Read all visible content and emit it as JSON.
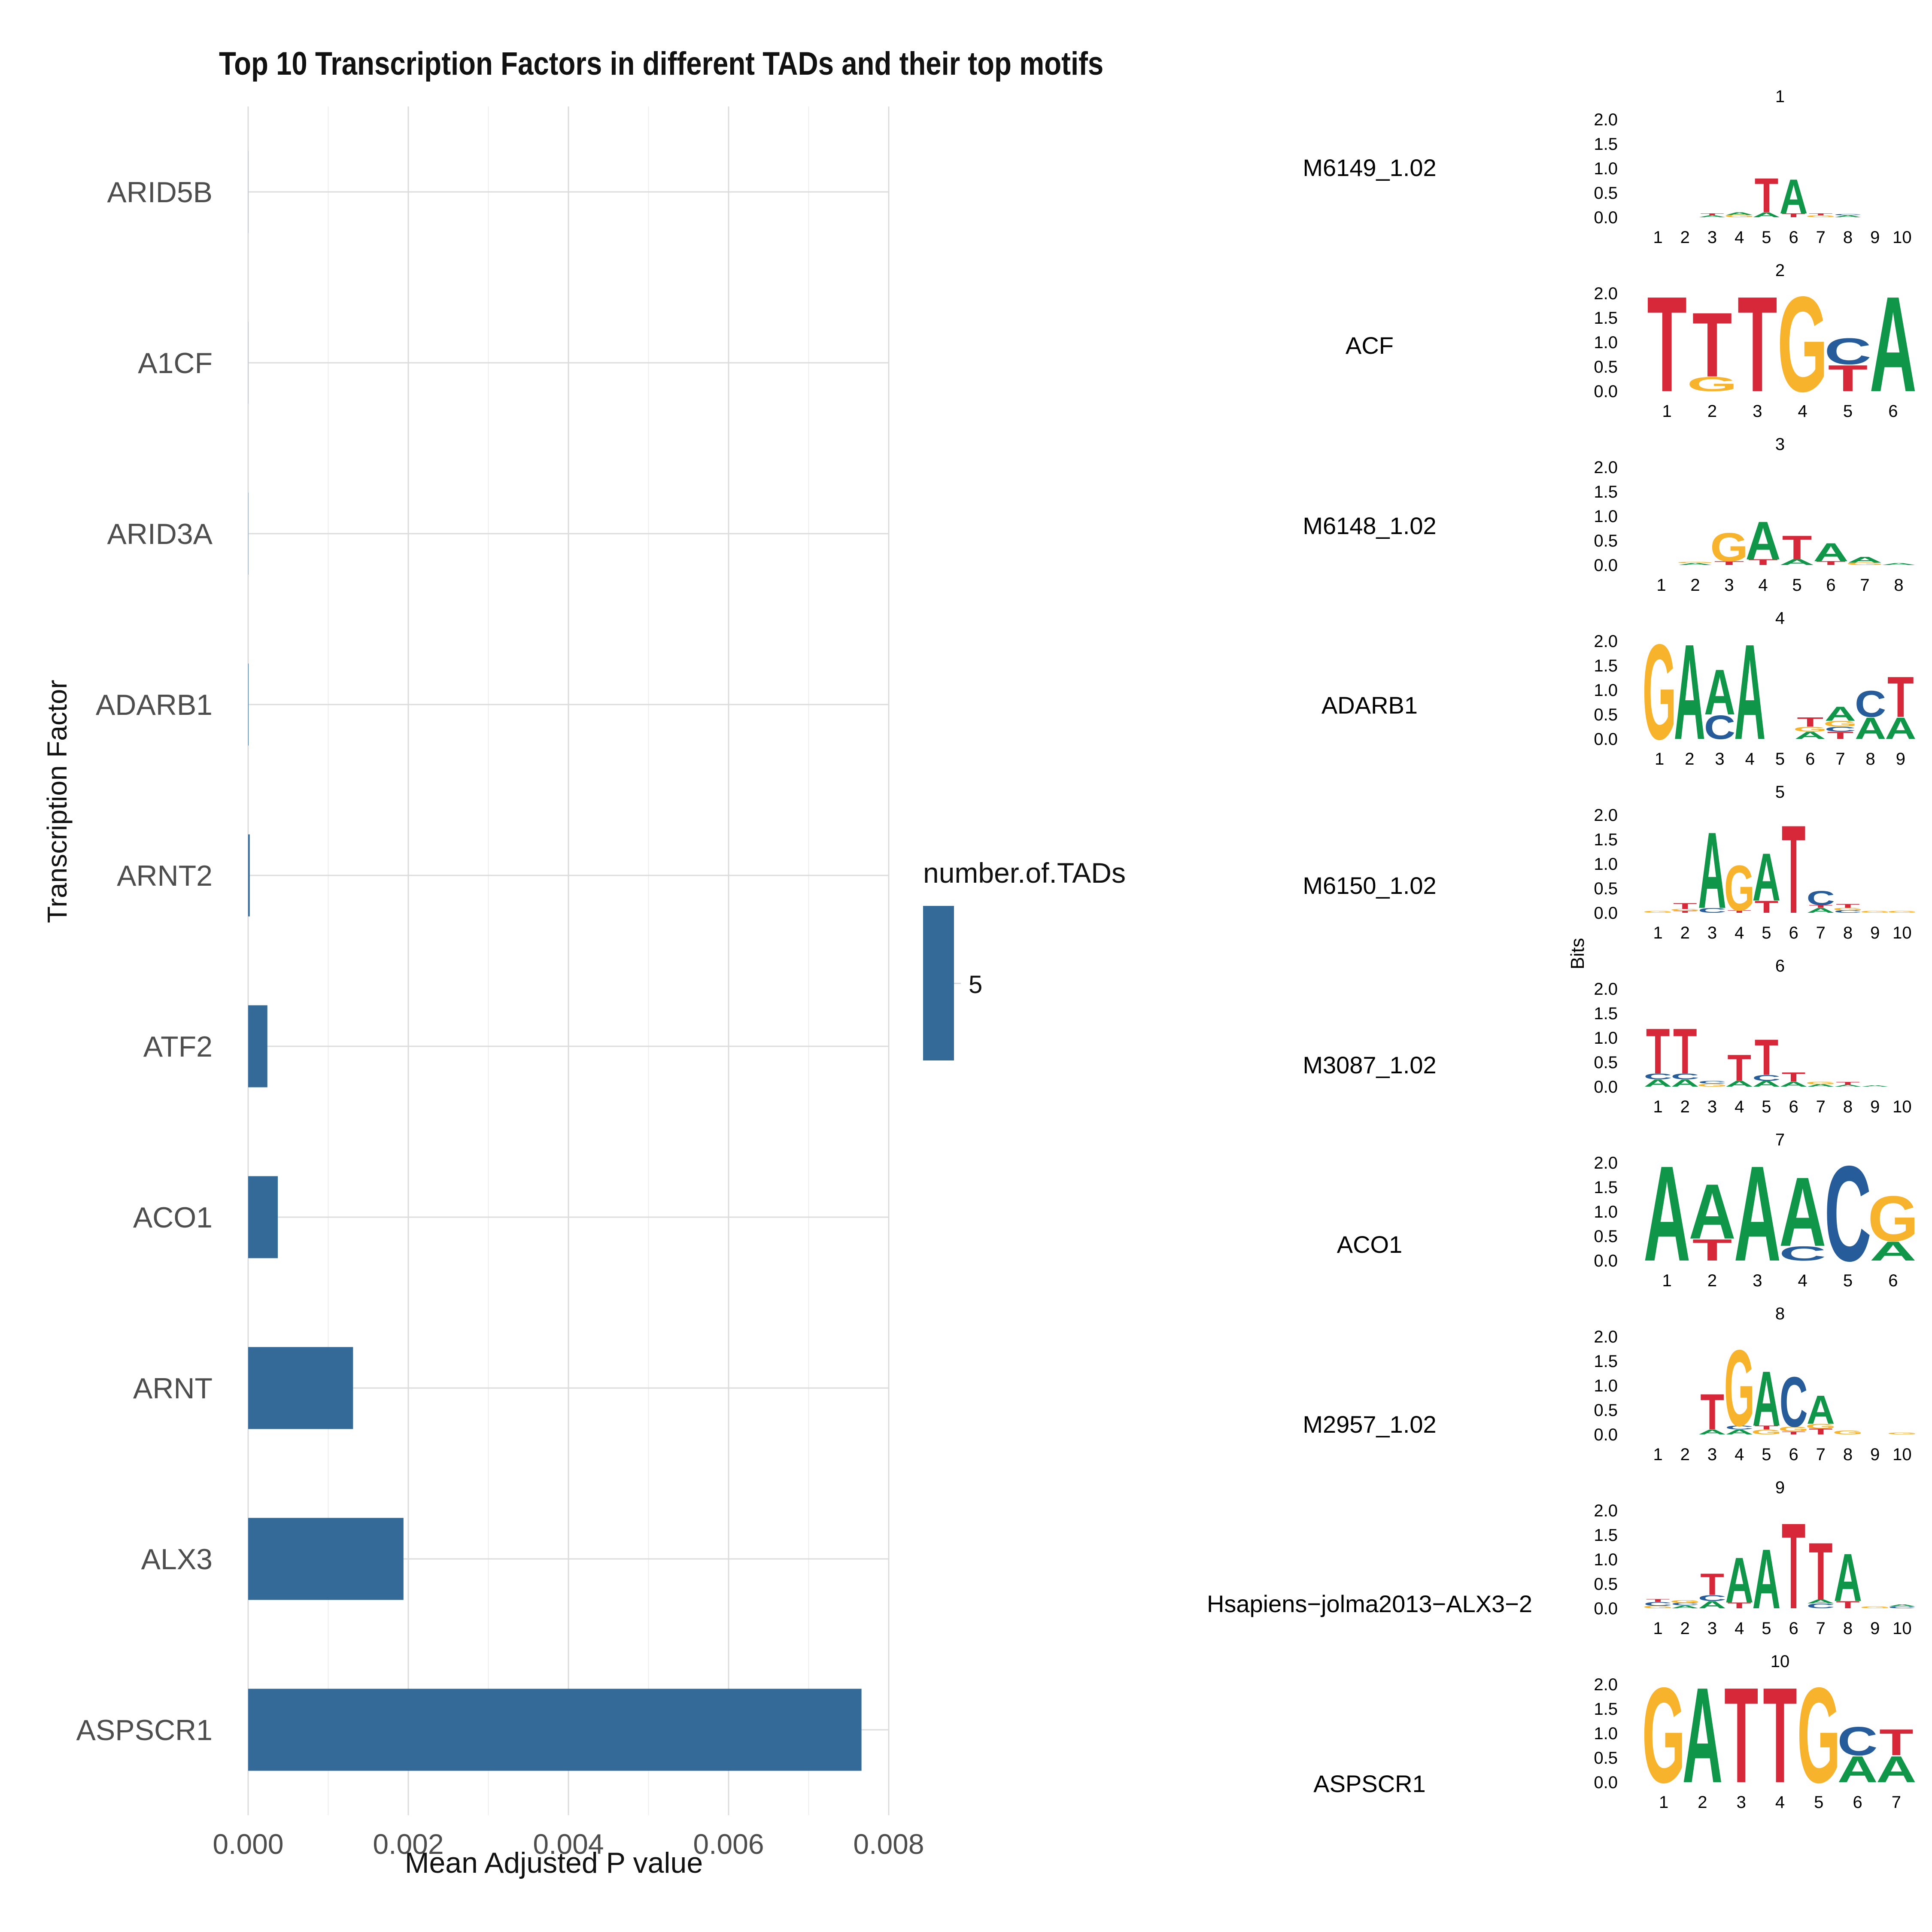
{
  "chart_data": [
    {
      "type": "bar",
      "orientation": "horizontal",
      "title": "Top 10 Transcription Factors in different TADs and their top motifs",
      "xlabel": "Mean Adjusted P value",
      "ylabel": "Transcription Factor",
      "categories": [
        "ASPSCR1",
        "ALX3",
        "ARNT",
        "ACO1",
        "ATF2",
        "ARNT2",
        "ADARB1",
        "ARID3A",
        "A1CF",
        "ARID5B"
      ],
      "values": [
        0.00766,
        0.00194,
        0.00131,
        0.00037,
        0.00024,
        2e-05,
        5e-06,
        2e-06,
        1e-06,
        1e-06
      ],
      "xlim": [
        0,
        0.008
      ],
      "xticks": [
        "0.000",
        "0.002",
        "0.004",
        "0.006",
        "0.008"
      ],
      "grid": true,
      "bar_color": "#336a98",
      "legend": {
        "title": "number.of.TADs",
        "entries": [
          "5"
        ],
        "placement": "right"
      }
    },
    {
      "type": "sequence-logo",
      "ylabel": "Bits",
      "ylim": [
        0,
        2.0
      ],
      "yticks": [
        "0.0",
        "0.5",
        "1.0",
        "1.5",
        "2.0"
      ],
      "colors": {
        "A": "#109648",
        "C": "#255c99",
        "G": "#f7b32b",
        "T": "#d62839"
      },
      "motifs": [
        {
          "index": "1",
          "name": "M6149_1.02",
          "length": 10,
          "columns": [
            [],
            [],
            [
              [
                "A",
                0.04
              ],
              [
                "T",
                0.04
              ]
            ],
            [
              [
                "G",
                0.05
              ],
              [
                "A",
                0.05
              ]
            ],
            [
              [
                "A",
                0.1
              ],
              [
                "T",
                0.72
              ]
            ],
            [
              [
                "T",
                0.08
              ],
              [
                "A",
                0.72
              ]
            ],
            [
              [
                "G",
                0.04
              ],
              [
                "T",
                0.04
              ]
            ],
            [
              [
                "A",
                0.04
              ],
              [
                "C",
                0.03
              ]
            ],
            [],
            []
          ]
        },
        {
          "index": "2",
          "name": "ACF",
          "length": 6,
          "columns": [
            [
              [
                "T",
                2.0
              ]
            ],
            [
              [
                "G",
                0.3
              ],
              [
                "T",
                1.35
              ]
            ],
            [
              [
                "T",
                2.0
              ]
            ],
            [
              [
                "G",
                2.0
              ]
            ],
            [
              [
                "T",
                0.55
              ],
              [
                "C",
                0.55
              ]
            ],
            [
              [
                "A",
                2.0
              ]
            ]
          ]
        },
        {
          "index": "3",
          "name": "M6148_1.02",
          "length": 8,
          "columns": [
            [],
            [
              [
                "A",
                0.04
              ],
              [
                "G",
                0.03
              ]
            ],
            [
              [
                "T",
                0.08
              ],
              [
                "G",
                0.6
              ]
            ],
            [
              [
                "T",
                0.12
              ],
              [
                "A",
                0.8
              ]
            ],
            [
              [
                "A",
                0.12
              ],
              [
                "T",
                0.5
              ]
            ],
            [
              [
                "T",
                0.08
              ],
              [
                "A",
                0.38
              ]
            ],
            [
              [
                "G",
                0.05
              ],
              [
                "A",
                0.12
              ]
            ],
            [
              [
                "A",
                0.04
              ]
            ]
          ]
        },
        {
          "index": "4",
          "name": "ADARB1",
          "length": 9,
          "columns": [
            [
              [
                "G",
                2.0
              ]
            ],
            [
              [
                "A",
                2.0
              ]
            ],
            [
              [
                "C",
                0.5
              ],
              [
                "A",
                0.95
              ]
            ],
            [
              [
                "A",
                2.0
              ]
            ],
            [],
            [
              [
                "A",
                0.15
              ],
              [
                "G",
                0.1
              ],
              [
                "T",
                0.2
              ]
            ],
            [
              [
                "T",
                0.15
              ],
              [
                "C",
                0.1
              ],
              [
                "G",
                0.12
              ],
              [
                "A",
                0.3
              ]
            ],
            [
              [
                "A",
                0.45
              ],
              [
                "C",
                0.55
              ]
            ],
            [
              [
                "A",
                0.45
              ],
              [
                "T",
                0.85
              ]
            ]
          ]
        },
        {
          "index": "5",
          "name": "M6150_1.02",
          "length": 10,
          "columns": [
            [
              [
                "G",
                0.04
              ]
            ],
            [
              [
                "T",
                0.04
              ],
              [
                "G",
                0.04
              ],
              [
                "T",
                0.12
              ]
            ],
            [
              [
                "C",
                0.1
              ],
              [
                "A",
                1.6
              ]
            ],
            [
              [
                "T",
                0.05
              ],
              [
                "G",
                0.95
              ]
            ],
            [
              [
                "T",
                0.25
              ],
              [
                "A",
                1.0
              ]
            ],
            [
              [
                "T",
                1.85
              ]
            ],
            [
              [
                "A",
                0.1
              ],
              [
                "T",
                0.06
              ],
              [
                "C",
                0.3
              ]
            ],
            [
              [
                "C",
                0.05
              ],
              [
                "G",
                0.05
              ],
              [
                "T",
                0.08
              ]
            ],
            [
              [
                "G",
                0.04
              ]
            ],
            [
              [
                "G",
                0.04
              ]
            ]
          ]
        },
        {
          "index": "6",
          "name": "M3087_1.02",
          "length": 10,
          "columns": [
            [
              [
                "A",
                0.15
              ],
              [
                "C",
                0.12
              ],
              [
                "T",
                0.95
              ]
            ],
            [
              [
                "A",
                0.15
              ],
              [
                "C",
                0.12
              ],
              [
                "T",
                0.95
              ]
            ],
            [
              [
                "G",
                0.06
              ],
              [
                "C",
                0.06
              ]
            ],
            [
              [
                "A",
                0.12
              ],
              [
                "T",
                0.55
              ]
            ],
            [
              [
                "A",
                0.12
              ],
              [
                "C",
                0.12
              ],
              [
                "T",
                0.75
              ]
            ],
            [
              [
                "A",
                0.1
              ],
              [
                "T",
                0.2
              ]
            ],
            [
              [
                "A",
                0.05
              ],
              [
                "G",
                0.05
              ]
            ],
            [
              [
                "A",
                0.04
              ],
              [
                "T",
                0.06
              ]
            ],
            [
              [
                "A",
                0.03
              ]
            ],
            []
          ]
        },
        {
          "index": "7",
          "name": "ACO1",
          "length": 6,
          "columns": [
            [
              [
                "A",
                2.0
              ]
            ],
            [
              [
                "T",
                0.45
              ],
              [
                "A",
                1.15
              ]
            ],
            [
              [
                "A",
                2.0
              ]
            ],
            [
              [
                "C",
                0.3
              ],
              [
                "A",
                1.45
              ]
            ],
            [
              [
                "C",
                2.0
              ]
            ],
            [
              [
                "A",
                0.4
              ],
              [
                "G",
                0.95
              ]
            ]
          ]
        },
        {
          "index": "8",
          "name": "M2957_1.02",
          "length": 10,
          "columns": [
            [],
            [],
            [
              [
                "A",
                0.1
              ],
              [
                "T",
                0.75
              ]
            ],
            [
              [
                "A",
                0.1
              ],
              [
                "C",
                0.08
              ],
              [
                "G",
                1.6
              ]
            ],
            [
              [
                "G",
                0.1
              ],
              [
                "T",
                0.08
              ],
              [
                "A",
                1.15
              ]
            ],
            [
              [
                "T",
                0.06
              ],
              [
                "G",
                0.1
              ],
              [
                "C",
                1.05
              ]
            ],
            [
              [
                "T",
                0.12
              ],
              [
                "G",
                0.1
              ],
              [
                "A",
                0.6
              ]
            ],
            [
              [
                "G",
                0.08
              ]
            ],
            [],
            [
              [
                "G",
                0.04
              ]
            ]
          ]
        },
        {
          "index": "9",
          "name": "Hsapiens−jolma2013−ALX3−2",
          "length": 10,
          "columns": [
            [
              [
                "G",
                0.05
              ],
              [
                "C",
                0.08
              ],
              [
                "T",
                0.06
              ]
            ],
            [
              [
                "A",
                0.06
              ],
              [
                "C",
                0.05
              ],
              [
                "G",
                0.06
              ]
            ],
            [
              [
                "A",
                0.15
              ],
              [
                "C",
                0.12
              ],
              [
                "T",
                0.45
              ]
            ],
            [
              [
                "T",
                0.12
              ],
              [
                "A",
                0.95
              ]
            ],
            [
              [
                "A",
                1.25
              ]
            ],
            [
              [
                "T",
                1.8
              ]
            ],
            [
              [
                "C",
                0.1
              ],
              [
                "A",
                0.08
              ],
              [
                "T",
                1.2
              ]
            ],
            [
              [
                "T",
                0.15
              ],
              [
                "A",
                1.0
              ]
            ],
            [
              [
                "G",
                0.04
              ]
            ],
            [
              [
                "C",
                0.04
              ],
              [
                "A",
                0.04
              ]
            ]
          ]
        },
        {
          "index": "10",
          "name": "ASPSCR1",
          "length": 7,
          "columns": [
            [
              [
                "G",
                2.0
              ]
            ],
            [
              [
                "A",
                2.0
              ]
            ],
            [
              [
                "T",
                2.0
              ]
            ],
            [
              [
                "T",
                2.0
              ]
            ],
            [
              [
                "G",
                2.0
              ]
            ],
            [
              [
                "A",
                0.55
              ],
              [
                "C",
                0.6
              ]
            ],
            [
              [
                "A",
                0.55
              ],
              [
                "T",
                0.55
              ]
            ]
          ]
        }
      ]
    }
  ]
}
